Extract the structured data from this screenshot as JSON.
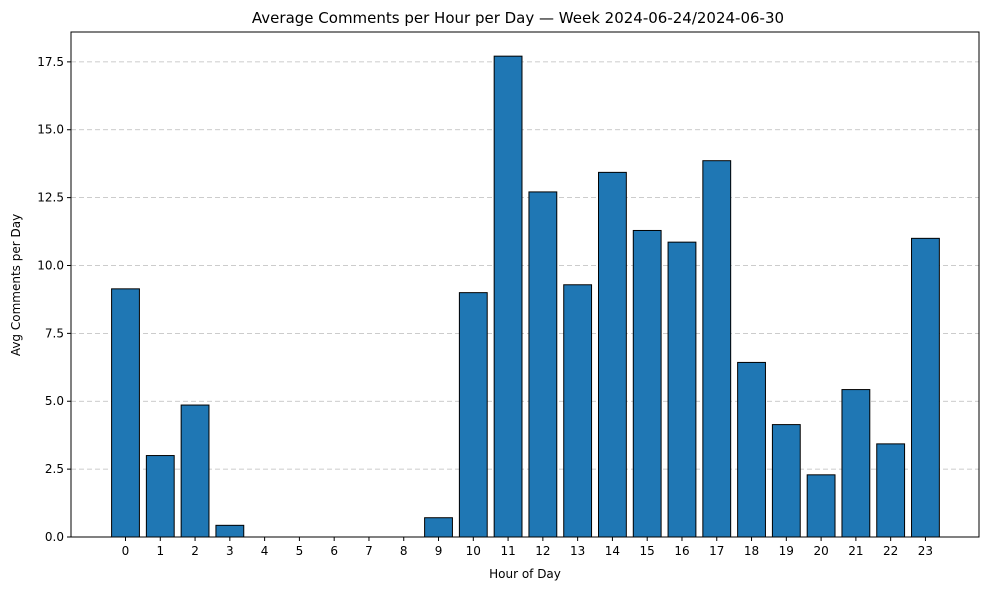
{
  "chart_data": {
    "type": "bar",
    "title": "Average Comments per Hour per Day — Week 2024-06-24/2024-06-30",
    "xlabel": "Hour of Day",
    "ylabel": "Avg Comments per Day",
    "categories": [
      "0",
      "1",
      "2",
      "3",
      "4",
      "5",
      "6",
      "7",
      "8",
      "9",
      "10",
      "11",
      "12",
      "13",
      "14",
      "15",
      "16",
      "17",
      "18",
      "19",
      "20",
      "21",
      "22",
      "23"
    ],
    "values": [
      9.14,
      3.0,
      4.86,
      0.43,
      0,
      0,
      0,
      0,
      0,
      0.71,
      9.0,
      17.71,
      12.71,
      9.29,
      13.43,
      11.29,
      10.86,
      13.86,
      6.43,
      4.14,
      2.29,
      5.43,
      3.43,
      11.0
    ],
    "ylim": [
      0,
      18.6
    ],
    "yticks": [
      "0.0",
      "2.5",
      "5.0",
      "7.5",
      "10.0",
      "12.5",
      "15.0",
      "17.5"
    ],
    "grid": "y",
    "bar_color": "#1f77b4",
    "edge_color": "#000000"
  }
}
